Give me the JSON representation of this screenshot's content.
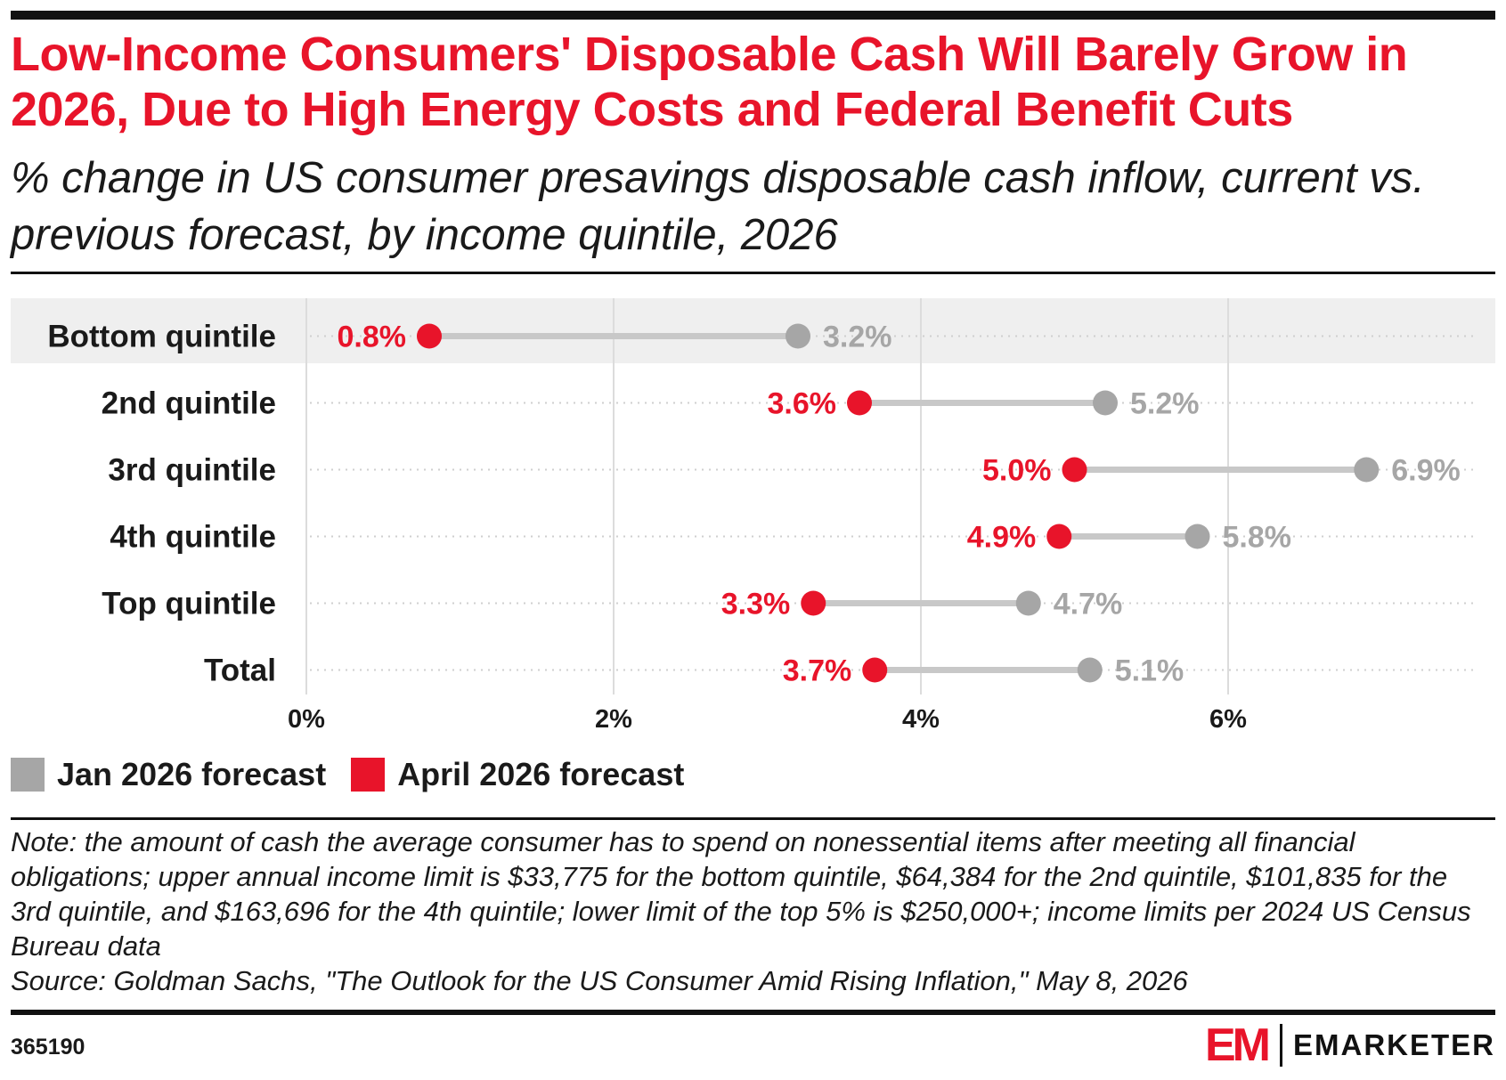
{
  "header": {
    "title": "Low-Income Consumers' Disposable Cash Will Barely Grow in 2026, Due to High Energy Costs and Federal Benefit Cuts",
    "subtitle": "% change in US consumer presavings disposable cash inflow, current vs. previous forecast, by income quintile, 2026"
  },
  "legend": {
    "items": [
      {
        "label": "Jan 2026 forecast",
        "color": "#a6a6a6"
      },
      {
        "label": "April 2026 forecast",
        "color": "#e8142a"
      }
    ]
  },
  "footer": {
    "note": "Note: the amount of cash the average consumer has to spend on nonessential items after meeting all financial obligations; upper annual income limit is $33,775 for the bottom quintile, $64,384 for the 2nd quintile, $101,835 for the 3rd quintile, and $163,696 for the 4th quintile; lower limit of the top 5% is $250,000+; income limits per 2024 US Census Bureau data",
    "source": "Source: Goldman Sachs, \"The Outlook for the US Consumer Amid Rising Inflation,\" May 8, 2026",
    "chart_id": "365190",
    "brand": "EMARKETER",
    "brand_mark": "EM"
  },
  "chart_data": {
    "type": "dumbbell",
    "categories": [
      "Bottom quintile",
      "2nd quintile",
      "3rd quintile",
      "4th quintile",
      "Top quintile",
      "Total"
    ],
    "series": [
      {
        "name": "Jan 2026 forecast",
        "values": [
          3.2,
          5.2,
          6.9,
          5.8,
          4.7,
          5.1
        ],
        "labels": [
          "3.2%",
          "5.2%",
          "6.9%",
          "5.8%",
          "4.7%",
          "5.1%"
        ],
        "color": "#a6a6a6"
      },
      {
        "name": "April 2026 forecast",
        "values": [
          0.8,
          3.6,
          5.0,
          4.9,
          3.3,
          3.7
        ],
        "labels": [
          "0.8%",
          "3.6%",
          "5.0%",
          "4.9%",
          "3.3%",
          "3.7%"
        ],
        "color": "#e8142a"
      }
    ],
    "xlim": [
      0,
      7.6
    ],
    "xticks": [
      0,
      2,
      4,
      6
    ],
    "xtick_labels": [
      "0%",
      "2%",
      "4%",
      "6%"
    ],
    "highlighted_category": "Bottom quintile",
    "grid": true,
    "legend_position": "bottom-left"
  }
}
